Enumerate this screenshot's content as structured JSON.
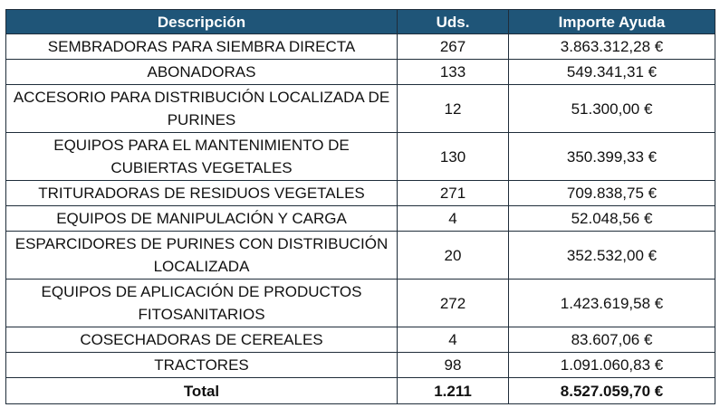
{
  "header": {
    "descripcion": "Descripción",
    "uds": "Uds.",
    "importe": "Importe Ayuda"
  },
  "rows": [
    {
      "desc": "SEMBRADORAS PARA SIEMBRA DIRECTA",
      "uds": "267",
      "importe": "3.863.312,28 €"
    },
    {
      "desc": "ABONADORAS",
      "uds": "133",
      "importe": "549.341,31 €"
    },
    {
      "desc": "ACCESORIO PARA DISTRIBUCIÓN LOCALIZADA DE PURINES",
      "uds": "12",
      "importe": "51.300,00 €"
    },
    {
      "desc": "EQUIPOS PARA EL MANTENIMIENTO DE CUBIERTAS VEGETALES",
      "uds": "130",
      "importe": "350.399,33 €"
    },
    {
      "desc": "TRITURADORAS DE RESIDUOS VEGETALES",
      "uds": "271",
      "importe": "709.838,75 €"
    },
    {
      "desc": "EQUIPOS DE MANIPULACIÓN Y CARGA",
      "uds": "4",
      "importe": "52.048,56 €"
    },
    {
      "desc": "ESPARCIDORES DE PURINES CON DISTRIBUCIÓN LOCALIZADA",
      "uds": "20",
      "importe": "352.532,00 €"
    },
    {
      "desc": "EQUIPOS DE APLICACIÓN DE PRODUCTOS FITOSANITARIOS",
      "uds": "272",
      "importe": "1.423.619,58 €"
    },
    {
      "desc": "COSECHADORAS DE CEREALES",
      "uds": "4",
      "importe": "83.607,06 €"
    },
    {
      "desc": "TRACTORES",
      "uds": "98",
      "importe": "1.091.060,83 €"
    }
  ],
  "total": {
    "label": "Total",
    "uds": "1.211",
    "importe": "8.527.059,70 €"
  },
  "colors": {
    "header_bg": "#1f5578",
    "header_text": "#ffffff",
    "border": "#1f2d3a"
  }
}
